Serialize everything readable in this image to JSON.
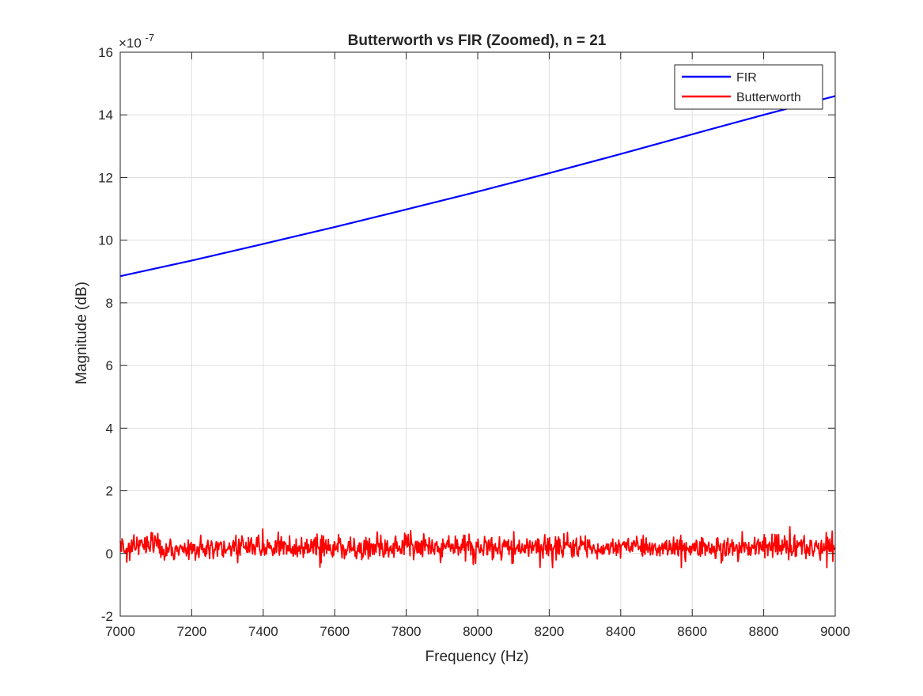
{
  "chart_data": {
    "type": "line",
    "title": "Butterworth vs FIR (Zoomed), n = 21",
    "xlabel": "Frequency (Hz)",
    "ylabel": "Magnitude (dB)",
    "y_exponent": "×10",
    "y_exponent_power": "-7",
    "xlim": [
      7000,
      9000
    ],
    "ylim": [
      -2,
      16
    ],
    "x_ticks": [
      7000,
      7200,
      7400,
      7600,
      7800,
      8000,
      8200,
      8400,
      8600,
      8800,
      9000
    ],
    "y_ticks": [
      -2,
      0,
      2,
      4,
      6,
      8,
      10,
      12,
      14,
      16
    ],
    "grid": true,
    "legend_position": "top-right",
    "series": [
      {
        "name": "FIR",
        "color": "#0000ff",
        "kind": "smooth",
        "x": [
          7000,
          7200,
          7400,
          7600,
          7800,
          8000,
          8200,
          8400,
          8600,
          8800,
          9000
        ],
        "y": [
          8.85,
          9.35,
          9.88,
          10.42,
          10.98,
          11.55,
          12.14,
          12.75,
          13.38,
          14.0,
          14.6
        ]
      },
      {
        "name": "Butterworth",
        "color": "#ff0000",
        "kind": "noise",
        "x_range": [
          7000,
          9000
        ],
        "points": 1200,
        "mean": 0.2,
        "std": 0.2,
        "min": -0.45,
        "max": 0.95
      }
    ]
  }
}
